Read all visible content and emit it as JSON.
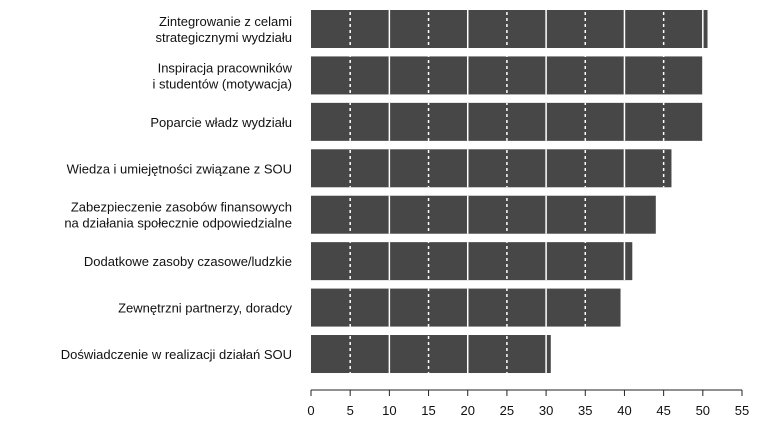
{
  "chart_data": {
    "type": "bar",
    "orientation": "horizontal",
    "categories": [
      "Zintegrowanie z celami\nstrategicznymi wydziału",
      "Inspiracja pracowników\ni studentów (motywacja)",
      "Poparcie władz wydziału",
      "Wiedza i umiejętności związane z SOU",
      "Zabezpieczenie zasobów finansowych\nna działania społecznie odpowiedzialne",
      "Dodatkowe zasoby czasowe/ludzkie",
      "Zewnętrzni partnerzy, doradcy",
      "Doświadczenie w realizacji działań SOU"
    ],
    "values": [
      50.6,
      50.0,
      50.0,
      46.0,
      44.0,
      41.0,
      39.5,
      30.6
    ],
    "xlim": [
      0,
      55
    ],
    "xticks": [
      "0",
      "5",
      "10",
      "15",
      "20",
      "25",
      "30",
      "35",
      "40",
      "45",
      "50",
      "55"
    ],
    "bar_color": "#474747",
    "gridlines": {
      "solid_every": 10,
      "dotted_every": 5,
      "color": "#ffffff"
    },
    "title": "",
    "xlabel": "",
    "ylabel": ""
  }
}
